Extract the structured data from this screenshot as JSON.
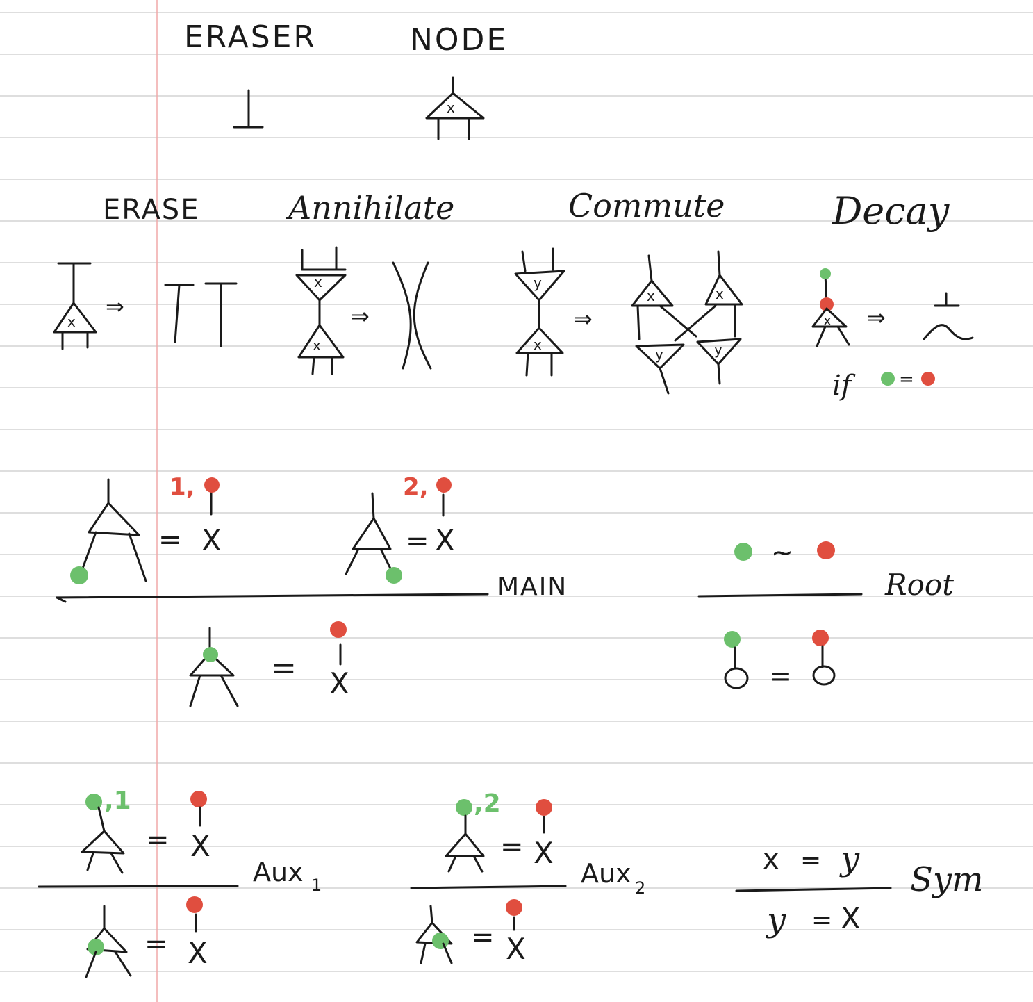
{
  "colors": {
    "ink": "#1a1a1a",
    "green_port": "#6cc06c",
    "red_port": "#e04e3f",
    "ruled_line": "#c9c9c9",
    "margin_line": "#f0a9a9",
    "paper": "#ffffff"
  },
  "headings": {
    "eraser": "ERASER",
    "node": "NODE"
  },
  "rules": {
    "erase": "ERASE",
    "annihilate": "Annihilate",
    "commute": "Commute",
    "decay": "Decay"
  },
  "glyphs": {
    "arrow": "⇒",
    "eq": "=",
    "tilde": "~",
    "decay_if": "if"
  },
  "node_vars": {
    "x": "x",
    "y": "y"
  },
  "judgments": {
    "main": "MAIN",
    "root": "Root",
    "aux1": "Aux",
    "aux1_sub": "1",
    "aux2": "Aux",
    "aux2_sub": "2",
    "sym": "Sym",
    "X": "X",
    "label_main_1": "1,",
    "label_main_2": "2,",
    "label_aux_1": ",1",
    "label_aux_2": ",2",
    "sym_top_left": "x",
    "sym_top_right": "y",
    "sym_bottom_left": "y",
    "sym_bottom_right": "X"
  }
}
